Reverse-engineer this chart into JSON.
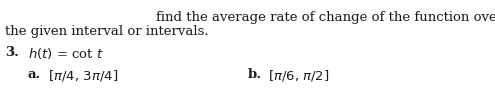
{
  "background_color": "#ffffff",
  "line1": "find the average rate of change of the function over",
  "line2": "the given interval or intervals.",
  "item_number": "3.",
  "part_a_label": "a.",
  "part_b_label": "b.",
  "text_color": "#1a1a1a",
  "font_size": 9.5
}
